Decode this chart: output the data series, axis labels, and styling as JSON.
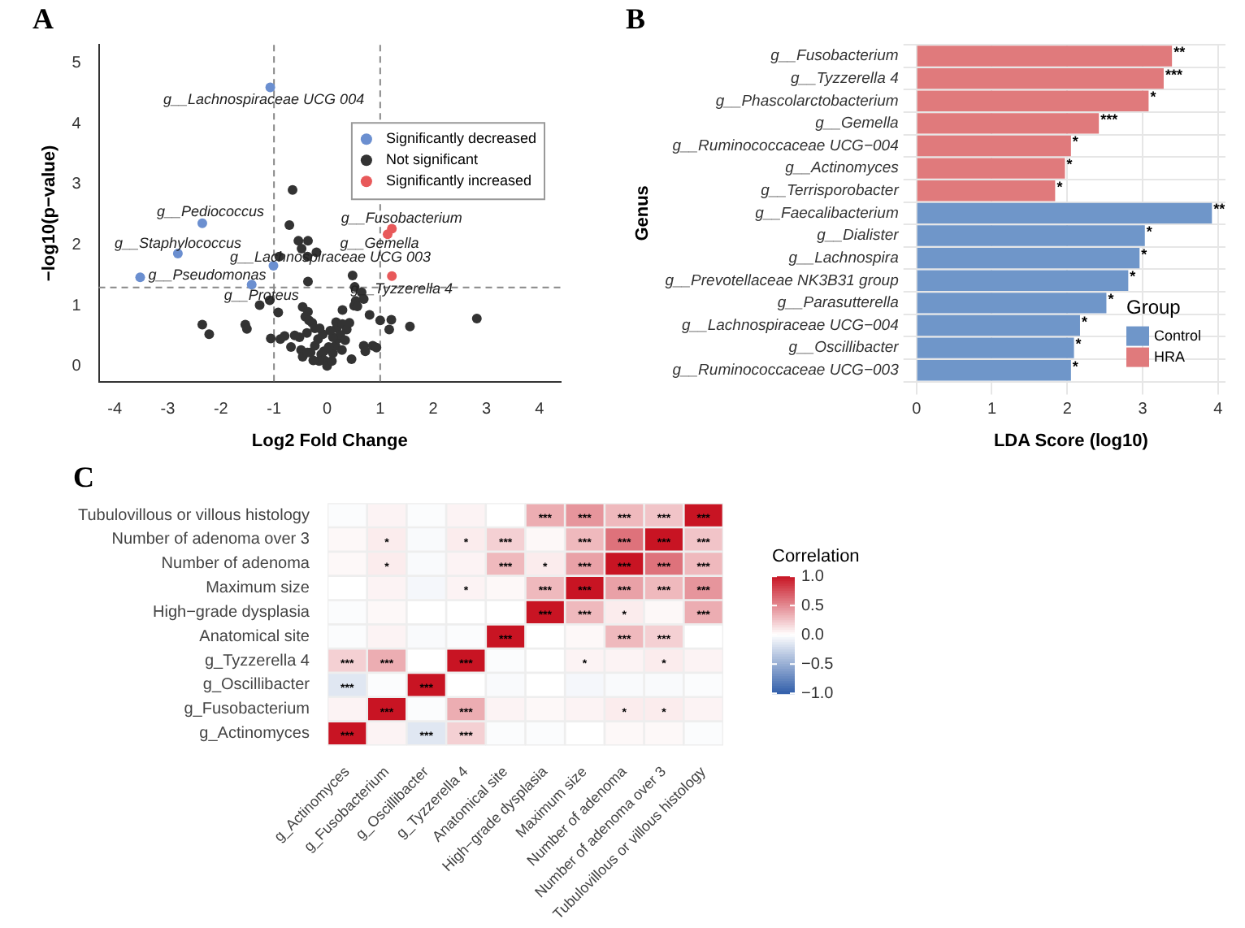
{
  "chart_data": [
    {
      "type": "scatter",
      "title": "A",
      "xlabel": "Log2 Fold Change",
      "ylabel": "−log10(p−value)",
      "xlim": [
        -4.3,
        4.4
      ],
      "xticks": [
        -4,
        -3,
        -2,
        -1,
        0,
        1,
        2,
        3,
        4
      ],
      "ylim": [
        -0.25,
        5.3
      ],
      "yticks": [
        0,
        1,
        2,
        3,
        4,
        5
      ],
      "legend": "top right",
      "marker": "circle",
      "series": [
        {
          "name": "Significantly decreased",
          "color": "#6b8fd0",
          "x": [
            -1.07,
            -2.35,
            -2.81,
            -3.52,
            -1.01,
            -1.42
          ],
          "values": [
            4.6,
            2.36,
            1.86,
            1.47,
            1.66,
            1.35
          ]
        },
        {
          "name": "Not significant",
          "color": "#333333",
          "x": [
            -0.65,
            -0.71,
            -0.54,
            -0.36,
            -0.48,
            -0.37,
            -0.9,
            -0.2,
            -0.36,
            0.48,
            0.52,
            0.65,
            0.69,
            0.54,
            0.51,
            0.57,
            0.29,
            0.8,
            1.0,
            1.21,
            1.17,
            1.56,
            2.82,
            -1.08,
            -1.27,
            -0.92,
            -2.35,
            -2.22,
            -1.54,
            -1.51,
            -1.06,
            -0.88,
            -0.8,
            -0.46,
            -0.36,
            -0.41,
            -0.34,
            -0.28,
            -0.23,
            -0.38,
            -0.52,
            -0.61,
            -0.68,
            -0.49,
            -0.46,
            -0.31,
            -0.23,
            -0.17,
            -0.08,
            -0.11,
            -0.05,
            0,
            0.11,
            0.16,
            0.21,
            0.18,
            0.17,
            0.29,
            0.37,
            0.42,
            0.25,
            0.34,
            0.28,
            0.46,
            0.69,
            0.72,
            0.86,
            0.93,
            -0.15,
            -0.26,
            -0.37,
            0.09,
            -0.06,
            0.03,
            0.11,
            0.06,
            -0.14
          ],
          "values": [
            2.91,
            2.33,
            2.07,
            2.07,
            1.94,
            1.81,
            1.81,
            1.88,
            1.4,
            1.5,
            1.31,
            1.22,
            1.11,
            1.08,
            1.0,
            0.99,
            0.93,
            0.85,
            0.76,
            0.77,
            0.61,
            0.66,
            0.79,
            1.09,
            1.01,
            0.89,
            0.69,
            0.53,
            0.69,
            0.62,
            0.46,
            0.45,
            0.5,
            0.98,
            0.9,
            0.82,
            0.76,
            0.72,
            0.63,
            0.55,
            0.48,
            0.51,
            0.32,
            0.27,
            0.16,
            0.23,
            0.34,
            0.45,
            0.53,
            0.2,
            0.1,
            0.01,
            0.22,
            0.34,
            0.46,
            0.63,
            0.73,
            0.7,
            0.61,
            0.72,
            0.52,
            0.43,
            0.27,
            0.12,
            0.34,
            0.25,
            0.34,
            0.31,
            0.09,
            0.1,
            0.23,
            0.09,
            0.25,
            0.32,
            0.48,
            0.59,
            0.63
          ]
        },
        {
          "name": "Significantly increased",
          "color": "#e8595a",
          "x": [
            1.22,
            1.14,
            1.22
          ],
          "values": [
            2.27,
            2.18,
            1.49
          ]
        }
      ],
      "ref_lines": [
        {
          "axis": "x",
          "value": -1,
          "color": "#888888",
          "line_style": "dashed"
        },
        {
          "axis": "x",
          "value": 1,
          "color": "#888888",
          "line_style": "dashed"
        },
        {
          "axis": "y",
          "value": 1.3,
          "color": "#888888",
          "line_style": "dashed"
        }
      ],
      "annotations": [
        {
          "text": "g__Lachnospiraceae UCG 004",
          "x": -1.07,
          "y": 4.6
        },
        {
          "text": "g__Pediococcus",
          "x": -2.35,
          "y": 2.36
        },
        {
          "text": "g__Staphylococcus",
          "x": -2.81,
          "y": 1.86
        },
        {
          "text": "g__Pseudomonas",
          "x": -3.52,
          "y": 1.47
        },
        {
          "text": "g__Lachnospiraceae UCG 003",
          "x": -1.01,
          "y": 1.66
        },
        {
          "text": "g__Proteus",
          "x": -1.42,
          "y": 1.35
        },
        {
          "text": "g__Fusobacterium",
          "x": 1.22,
          "y": 2.27
        },
        {
          "text": "g__Gemella",
          "x": 1.14,
          "y": 2.18
        },
        {
          "text": "g__Tyzzerella 4",
          "x": 1.22,
          "y": 1.49
        }
      ]
    },
    {
      "type": "bar",
      "title": "B",
      "orientation": "horizontal",
      "xlabel": "LDA Score (log10)",
      "ylabel": "Genus",
      "xlim": [
        0,
        4.1
      ],
      "xticks": [
        0,
        1,
        2,
        3,
        4
      ],
      "grid": true,
      "legend": "bottom right",
      "legend_title": "Group",
      "categories": [
        "g__Fusobacterium",
        "g__Tyzzerella 4",
        "g__Phascolarctobacterium",
        "g__Gemella",
        "g__Ruminococcaceae UCG−004",
        "g__Actinomyces",
        "g__Terrisporobacter",
        "g__Faecalibacterium",
        "g__Dialister",
        "g__Lachnospira",
        "g__Prevotellaceae NK3B31 group",
        "g__Parasutterella",
        "g__Lachnospiraceae UCG−004",
        "g__Oscillibacter",
        "g__Ruminococcaceae UCG−003"
      ],
      "series": [
        {
          "name": "Control",
          "color": "#6f96c9",
          "values": [
            null,
            null,
            null,
            null,
            null,
            null,
            null,
            3.92,
            3.03,
            2.96,
            2.81,
            2.52,
            2.17,
            2.09,
            2.05
          ],
          "value_labels": [
            null,
            null,
            null,
            null,
            null,
            null,
            null,
            "**",
            "*",
            "*",
            "*",
            "*",
            "*",
            "*",
            "*"
          ]
        },
        {
          "name": "HRA",
          "color": "#e07a7c",
          "values": [
            3.39,
            3.28,
            3.08,
            2.42,
            2.05,
            1.97,
            1.84,
            null,
            null,
            null,
            null,
            null,
            null,
            null,
            null
          ],
          "value_labels": [
            "**",
            "***",
            "*",
            "***",
            "*",
            "*",
            "*",
            null,
            null,
            null,
            null,
            null,
            null,
            null,
            null
          ]
        }
      ]
    },
    {
      "type": "heatmap",
      "title": "C",
      "clabel": "Correlation",
      "clim": [
        -1,
        1
      ],
      "cticks": [
        {
          "value": 1,
          "label": "1.0"
        },
        {
          "value": 0.5,
          "label": "0.5"
        },
        {
          "value": 0,
          "label": "0.0"
        },
        {
          "value": -0.5,
          "label": "−0.5"
        },
        {
          "value": -1,
          "label": "−1.0"
        }
      ],
      "categories": [
        "g_Actinomyces",
        "g_Fusobacterium",
        "g_Oscillibacter",
        "g_Tyzzerella 4",
        "Anatomical site",
        "High−grade dysplasia",
        "Maximum size",
        "Number of adenoma",
        "Number of adenoma over 3",
        "Tubulovillous or villous histology"
      ],
      "y_categories": [
        "Tubulovillous or villous histology",
        "Number of adenoma over 3",
        "Number of adenoma",
        "Maximum size",
        "High−grade dysplasia",
        "Anatomical site",
        "g_Tyzzerella 4",
        "g_Oscillibacter",
        "g_Fusobacterium",
        "g_Actinomyces"
      ],
      "cells": [
        [
          -0.02,
          0.05,
          -0.02,
          0.05,
          0,
          0.35,
          0.45,
          0.3,
          0.25,
          1
        ],
        [
          0.03,
          0.08,
          -0.03,
          0.08,
          0.2,
          0.03,
          0.3,
          0.6,
          1,
          0.25
        ],
        [
          0.03,
          0.08,
          -0.03,
          0.05,
          0.3,
          0.08,
          0.4,
          1,
          0.6,
          0.3
        ],
        [
          0,
          0.05,
          -0.05,
          0.05,
          0.03,
          0.3,
          1,
          0.4,
          0.3,
          0.45
        ],
        [
          -0.02,
          0.03,
          0,
          0,
          0,
          1,
          0.3,
          0.08,
          0.03,
          0.35
        ],
        [
          -0.02,
          0.05,
          -0.03,
          -0.02,
          1,
          0,
          0.03,
          0.3,
          0.2,
          0
        ],
        [
          0.2,
          0.35,
          0,
          1,
          -0.02,
          0,
          0.05,
          0.05,
          0.08,
          0.05
        ],
        [
          -0.15,
          -0.02,
          1,
          0,
          -0.03,
          0,
          -0.05,
          -0.03,
          -0.03,
          -0.02
        ],
        [
          0.05,
          1,
          -0.02,
          0.35,
          0.05,
          0.03,
          0.05,
          0.08,
          0.08,
          0.05
        ],
        [
          1,
          0.05,
          -0.15,
          0.2,
          -0.02,
          -0.02,
          0,
          0.03,
          0.03,
          -0.02
        ]
      ],
      "cell_labels": [
        [
          null,
          null,
          null,
          null,
          null,
          "***",
          "***",
          "***",
          "***",
          "***"
        ],
        [
          null,
          "*",
          null,
          "*",
          "***",
          null,
          "***",
          "***",
          "***",
          "***"
        ],
        [
          null,
          "*",
          null,
          null,
          "***",
          "*",
          "***",
          "***",
          "***",
          "***"
        ],
        [
          null,
          null,
          null,
          "*",
          null,
          "***",
          "***",
          "***",
          "***",
          "***"
        ],
        [
          null,
          null,
          null,
          null,
          null,
          "***",
          "***",
          "*",
          null,
          "***"
        ],
        [
          null,
          null,
          null,
          null,
          "***",
          null,
          null,
          "***",
          "***",
          null
        ],
        [
          "***",
          "***",
          null,
          "***",
          null,
          null,
          "*",
          null,
          "*",
          null
        ],
        [
          "***",
          null,
          "***",
          null,
          null,
          null,
          null,
          null,
          null,
          null
        ],
        [
          null,
          "***",
          null,
          "***",
          null,
          null,
          null,
          "*",
          "*",
          null
        ],
        [
          "***",
          null,
          "***",
          "***",
          null,
          null,
          null,
          null,
          null,
          null
        ]
      ]
    }
  ]
}
